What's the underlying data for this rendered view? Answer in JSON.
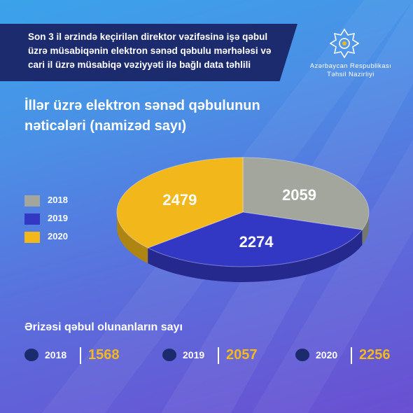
{
  "header": {
    "title": "Son 3 il ərzində keçirilən direktor vəzifəsinə işə qəbul üzrə müsabiqənin elektron sənəd qəbulu mərhələsi və cari il üzrə müsabiqə vəziyyəti ilə bağlı data təhlili",
    "ministry_line1": "Azərbaycan Respublikası",
    "ministry_line2": "Təhsil Nazirliyi"
  },
  "colors": {
    "y2018": "#a2a69c",
    "y2019": "#3338c4",
    "y2020": "#f2b81b",
    "banner": "#1c2a6e",
    "accent_number": "#f6b81a"
  },
  "chart_data": {
    "type": "pie",
    "title": "İllər üzrə elektron sənəd qəbulunun nəticələri (namizəd sayı)",
    "categories": [
      "2018",
      "2019",
      "2020"
    ],
    "values": [
      2059,
      2274,
      2479
    ],
    "legend_position": "left",
    "style": "3d"
  },
  "applications": {
    "title": "Ərizəsi qəbul olunanların sayı",
    "items": [
      {
        "year": "2018",
        "count": "1568"
      },
      {
        "year": "2019",
        "count": "2057"
      },
      {
        "year": "2020",
        "count": "2256"
      }
    ]
  }
}
